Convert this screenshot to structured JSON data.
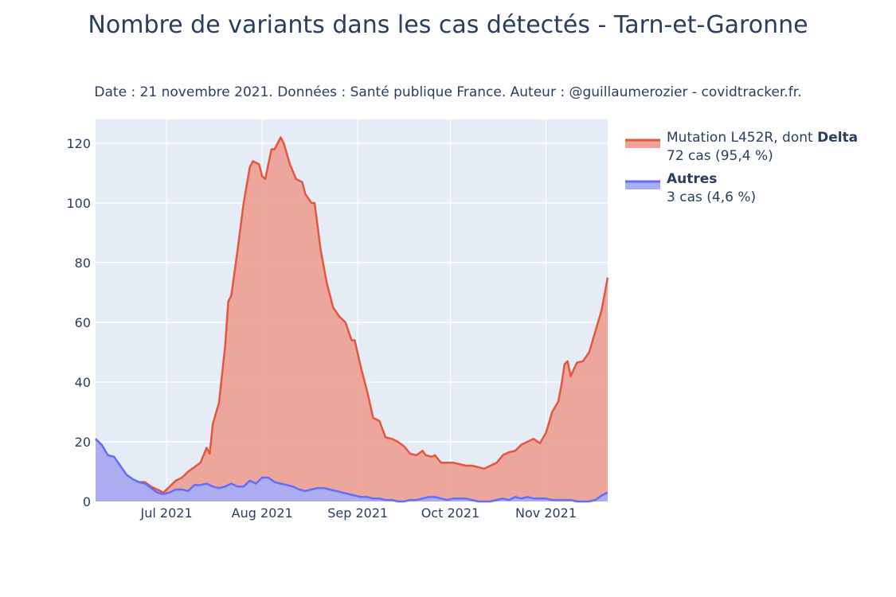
{
  "chart_data": {
    "type": "area",
    "title": "Nombre de variants dans les cas détectés - Tarn-et-Garonne",
    "subtitle": "Date : 21 novembre 2021. Données : Santé publique France. Auteur : @guillaumerozier - covidtracker.fr.",
    "xlabel": "",
    "ylabel": "",
    "x_range": [
      "2021-06-08",
      "2021-11-21"
    ],
    "ylim": [
      0,
      128
    ],
    "yticks": [
      0,
      20,
      40,
      60,
      80,
      100,
      120
    ],
    "xticks": [
      {
        "date": "2021-07-01",
        "label": "Jul 2021"
      },
      {
        "date": "2021-08-01",
        "label": "Aug 2021"
      },
      {
        "date": "2021-09-01",
        "label": "Sep 2021"
      },
      {
        "date": "2021-10-01",
        "label": "Oct 2021"
      },
      {
        "date": "2021-11-01",
        "label": "Nov 2021"
      }
    ],
    "grid": true,
    "legend_position": "top-right",
    "stacked": true,
    "series": [
      {
        "name_prefix": "Mutation L452R, dont ",
        "name_bold": "Delta",
        "detail": "72 cas (95,4 %)",
        "line_color": "#e4563f",
        "fill_color": "#eda296",
        "cumulative_points": [
          [
            "2021-06-08",
            21
          ],
          [
            "2021-06-10",
            19
          ],
          [
            "2021-06-12",
            15.5
          ],
          [
            "2021-06-14",
            15
          ],
          [
            "2021-06-16",
            12
          ],
          [
            "2021-06-18",
            9
          ],
          [
            "2021-06-20",
            7.5
          ],
          [
            "2021-06-22",
            6.5
          ],
          [
            "2021-06-24",
            6.5
          ],
          [
            "2021-06-26",
            5
          ],
          [
            "2021-06-28",
            4
          ],
          [
            "2021-06-30",
            3
          ],
          [
            "2021-07-02",
            5
          ],
          [
            "2021-07-04",
            7
          ],
          [
            "2021-07-06",
            8
          ],
          [
            "2021-07-08",
            10
          ],
          [
            "2021-07-10",
            11.5
          ],
          [
            "2021-07-12",
            13
          ],
          [
            "2021-07-14",
            18
          ],
          [
            "2021-07-15",
            16
          ],
          [
            "2021-07-16",
            26
          ],
          [
            "2021-07-18",
            33
          ],
          [
            "2021-07-20",
            52
          ],
          [
            "2021-07-21",
            67
          ],
          [
            "2021-07-22",
            69
          ],
          [
            "2021-07-24",
            84
          ],
          [
            "2021-07-26",
            100
          ],
          [
            "2021-07-28",
            112
          ],
          [
            "2021-07-29",
            114
          ],
          [
            "2021-07-31",
            113
          ],
          [
            "2021-08-01",
            109
          ],
          [
            "2021-08-02",
            108
          ],
          [
            "2021-08-04",
            118
          ],
          [
            "2021-08-05",
            118
          ],
          [
            "2021-08-07",
            122
          ],
          [
            "2021-08-08",
            120
          ],
          [
            "2021-08-10",
            113
          ],
          [
            "2021-08-12",
            108
          ],
          [
            "2021-08-14",
            107
          ],
          [
            "2021-08-15",
            103
          ],
          [
            "2021-08-17",
            100
          ],
          [
            "2021-08-18",
            100
          ],
          [
            "2021-08-20",
            84
          ],
          [
            "2021-08-22",
            73
          ],
          [
            "2021-08-24",
            65
          ],
          [
            "2021-08-26",
            62
          ],
          [
            "2021-08-28",
            60
          ],
          [
            "2021-08-30",
            54
          ],
          [
            "2021-08-31",
            54
          ],
          [
            "2021-09-02",
            45
          ],
          [
            "2021-09-04",
            37
          ],
          [
            "2021-09-06",
            28
          ],
          [
            "2021-09-08",
            27
          ],
          [
            "2021-09-10",
            21.5
          ],
          [
            "2021-09-12",
            21
          ],
          [
            "2021-09-14",
            20
          ],
          [
            "2021-09-16",
            18.5
          ],
          [
            "2021-09-18",
            16
          ],
          [
            "2021-09-20",
            15.5
          ],
          [
            "2021-09-22",
            17
          ],
          [
            "2021-09-23",
            15.5
          ],
          [
            "2021-09-25",
            15
          ],
          [
            "2021-09-26",
            15.5
          ],
          [
            "2021-09-28",
            13
          ],
          [
            "2021-09-30",
            13
          ],
          [
            "2021-10-02",
            13
          ],
          [
            "2021-10-04",
            12.5
          ],
          [
            "2021-10-06",
            12
          ],
          [
            "2021-10-08",
            12
          ],
          [
            "2021-10-10",
            11.5
          ],
          [
            "2021-10-12",
            11
          ],
          [
            "2021-10-14",
            12
          ],
          [
            "2021-10-16",
            13
          ],
          [
            "2021-10-18",
            15.5
          ],
          [
            "2021-10-20",
            16.5
          ],
          [
            "2021-10-22",
            17
          ],
          [
            "2021-10-24",
            19
          ],
          [
            "2021-10-26",
            20
          ],
          [
            "2021-10-28",
            21
          ],
          [
            "2021-10-30",
            19.5
          ],
          [
            "2021-11-01",
            23
          ],
          [
            "2021-11-03",
            30
          ],
          [
            "2021-11-05",
            33.5
          ],
          [
            "2021-11-06",
            39
          ],
          [
            "2021-11-07",
            46
          ],
          [
            "2021-11-08",
            47
          ],
          [
            "2021-11-09",
            42
          ],
          [
            "2021-11-11",
            46.5
          ],
          [
            "2021-11-13",
            47
          ],
          [
            "2021-11-15",
            50
          ],
          [
            "2021-11-17",
            57
          ],
          [
            "2021-11-19",
            64
          ],
          [
            "2021-11-21",
            75
          ]
        ]
      },
      {
        "name_prefix": "",
        "name_bold": "Autres",
        "detail": "3 cas (4,6 %)",
        "line_color": "#636efa",
        "fill_color": "#a9adf4",
        "points": [
          [
            "2021-06-08",
            21
          ],
          [
            "2021-06-10",
            19
          ],
          [
            "2021-06-12",
            15.5
          ],
          [
            "2021-06-14",
            15
          ],
          [
            "2021-06-16",
            12
          ],
          [
            "2021-06-18",
            9
          ],
          [
            "2021-06-20",
            7.5
          ],
          [
            "2021-06-22",
            6.5
          ],
          [
            "2021-06-24",
            6
          ],
          [
            "2021-06-26",
            4.5
          ],
          [
            "2021-06-28",
            3
          ],
          [
            "2021-06-30",
            2.5
          ],
          [
            "2021-07-02",
            3
          ],
          [
            "2021-07-04",
            4
          ],
          [
            "2021-07-06",
            4
          ],
          [
            "2021-07-08",
            3.5
          ],
          [
            "2021-07-10",
            5.5
          ],
          [
            "2021-07-12",
            5.5
          ],
          [
            "2021-07-14",
            6
          ],
          [
            "2021-07-16",
            5
          ],
          [
            "2021-07-18",
            4.5
          ],
          [
            "2021-07-20",
            5
          ],
          [
            "2021-07-22",
            6
          ],
          [
            "2021-07-24",
            5
          ],
          [
            "2021-07-26",
            5
          ],
          [
            "2021-07-28",
            7
          ],
          [
            "2021-07-30",
            6
          ],
          [
            "2021-08-01",
            8
          ],
          [
            "2021-08-03",
            8
          ],
          [
            "2021-08-05",
            6.5
          ],
          [
            "2021-08-07",
            6
          ],
          [
            "2021-08-09",
            5.5
          ],
          [
            "2021-08-11",
            5
          ],
          [
            "2021-08-13",
            4
          ],
          [
            "2021-08-15",
            3.5
          ],
          [
            "2021-08-17",
            4
          ],
          [
            "2021-08-19",
            4.5
          ],
          [
            "2021-08-21",
            4.5
          ],
          [
            "2021-08-23",
            4
          ],
          [
            "2021-08-25",
            3.5
          ],
          [
            "2021-08-27",
            3
          ],
          [
            "2021-08-29",
            2.5
          ],
          [
            "2021-08-31",
            2
          ],
          [
            "2021-09-02",
            1.5
          ],
          [
            "2021-09-04",
            1.5
          ],
          [
            "2021-09-06",
            1
          ],
          [
            "2021-09-08",
            1
          ],
          [
            "2021-09-10",
            0.5
          ],
          [
            "2021-09-12",
            0.5
          ],
          [
            "2021-09-14",
            0
          ],
          [
            "2021-09-16",
            0
          ],
          [
            "2021-09-18",
            0.5
          ],
          [
            "2021-09-20",
            0.5
          ],
          [
            "2021-09-22",
            1
          ],
          [
            "2021-09-24",
            1.5
          ],
          [
            "2021-09-26",
            1.5
          ],
          [
            "2021-09-28",
            1
          ],
          [
            "2021-09-30",
            0.5
          ],
          [
            "2021-10-02",
            1
          ],
          [
            "2021-10-04",
            1
          ],
          [
            "2021-10-06",
            1
          ],
          [
            "2021-10-08",
            0.5
          ],
          [
            "2021-10-10",
            0
          ],
          [
            "2021-10-12",
            0
          ],
          [
            "2021-10-14",
            0
          ],
          [
            "2021-10-16",
            0.5
          ],
          [
            "2021-10-18",
            1
          ],
          [
            "2021-10-20",
            0.5
          ],
          [
            "2021-10-22",
            1.5
          ],
          [
            "2021-10-24",
            1
          ],
          [
            "2021-10-26",
            1.5
          ],
          [
            "2021-10-28",
            1
          ],
          [
            "2021-10-30",
            1
          ],
          [
            "2021-11-01",
            1
          ],
          [
            "2021-11-03",
            0.5
          ],
          [
            "2021-11-05",
            0.5
          ],
          [
            "2021-11-07",
            0.5
          ],
          [
            "2021-11-09",
            0.5
          ],
          [
            "2021-11-11",
            0
          ],
          [
            "2021-11-13",
            0
          ],
          [
            "2021-11-15",
            0
          ],
          [
            "2021-11-17",
            0.5
          ],
          [
            "2021-11-19",
            2
          ],
          [
            "2021-11-21",
            3
          ]
        ]
      }
    ]
  }
}
